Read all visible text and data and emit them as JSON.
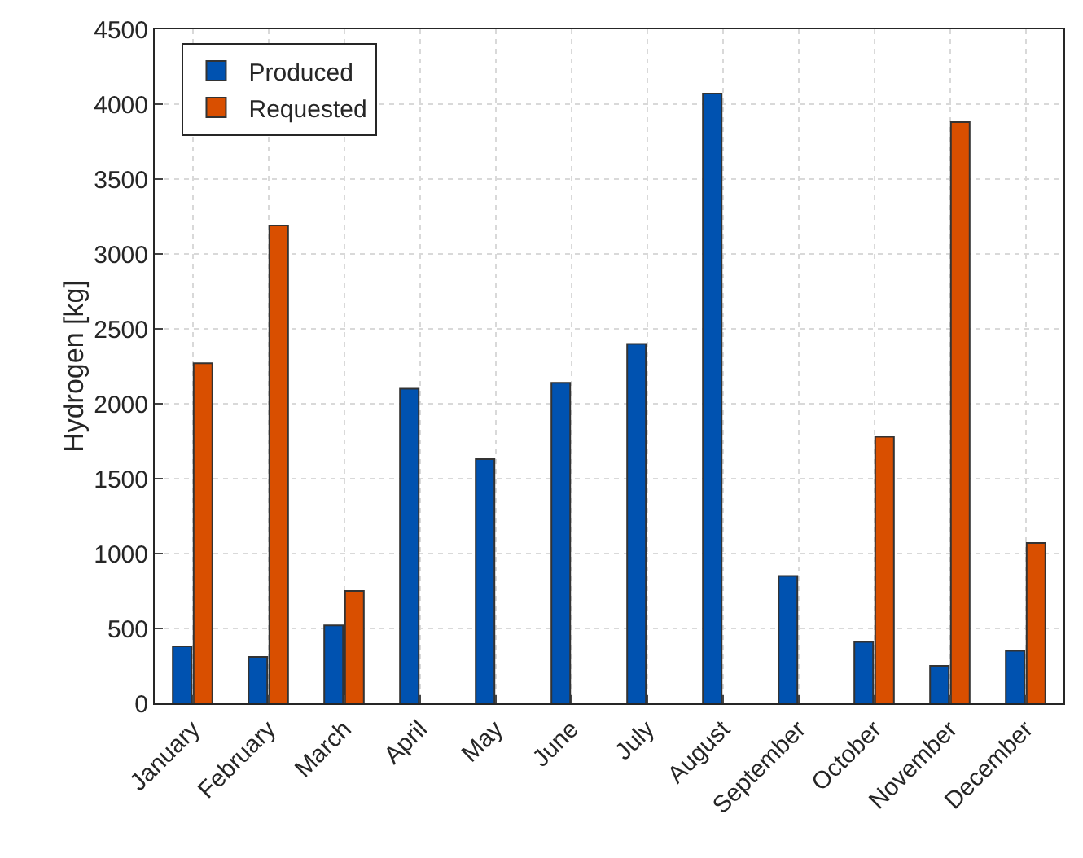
{
  "chart_data": {
    "type": "bar",
    "ylabel": "Hydrogen [kg]",
    "categories": [
      "January",
      "February",
      "March",
      "April",
      "May",
      "June",
      "July",
      "August",
      "September",
      "October",
      "November",
      "December"
    ],
    "series": [
      {
        "name": "Produced",
        "color": "#0052b0",
        "values": [
          380,
          310,
          520,
          2100,
          1630,
          2140,
          2400,
          4070,
          850,
          410,
          250,
          350
        ]
      },
      {
        "name": "Requested",
        "color": "#d94f00",
        "values": [
          2270,
          3190,
          750,
          null,
          null,
          null,
          null,
          null,
          null,
          1780,
          3880,
          1070
        ]
      }
    ],
    "ylim": [
      0,
      4500
    ],
    "yticks": [
      0,
      500,
      1000,
      1500,
      2000,
      2500,
      3000,
      3500,
      4000,
      4500
    ],
    "grid": true,
    "legend": "top left"
  }
}
